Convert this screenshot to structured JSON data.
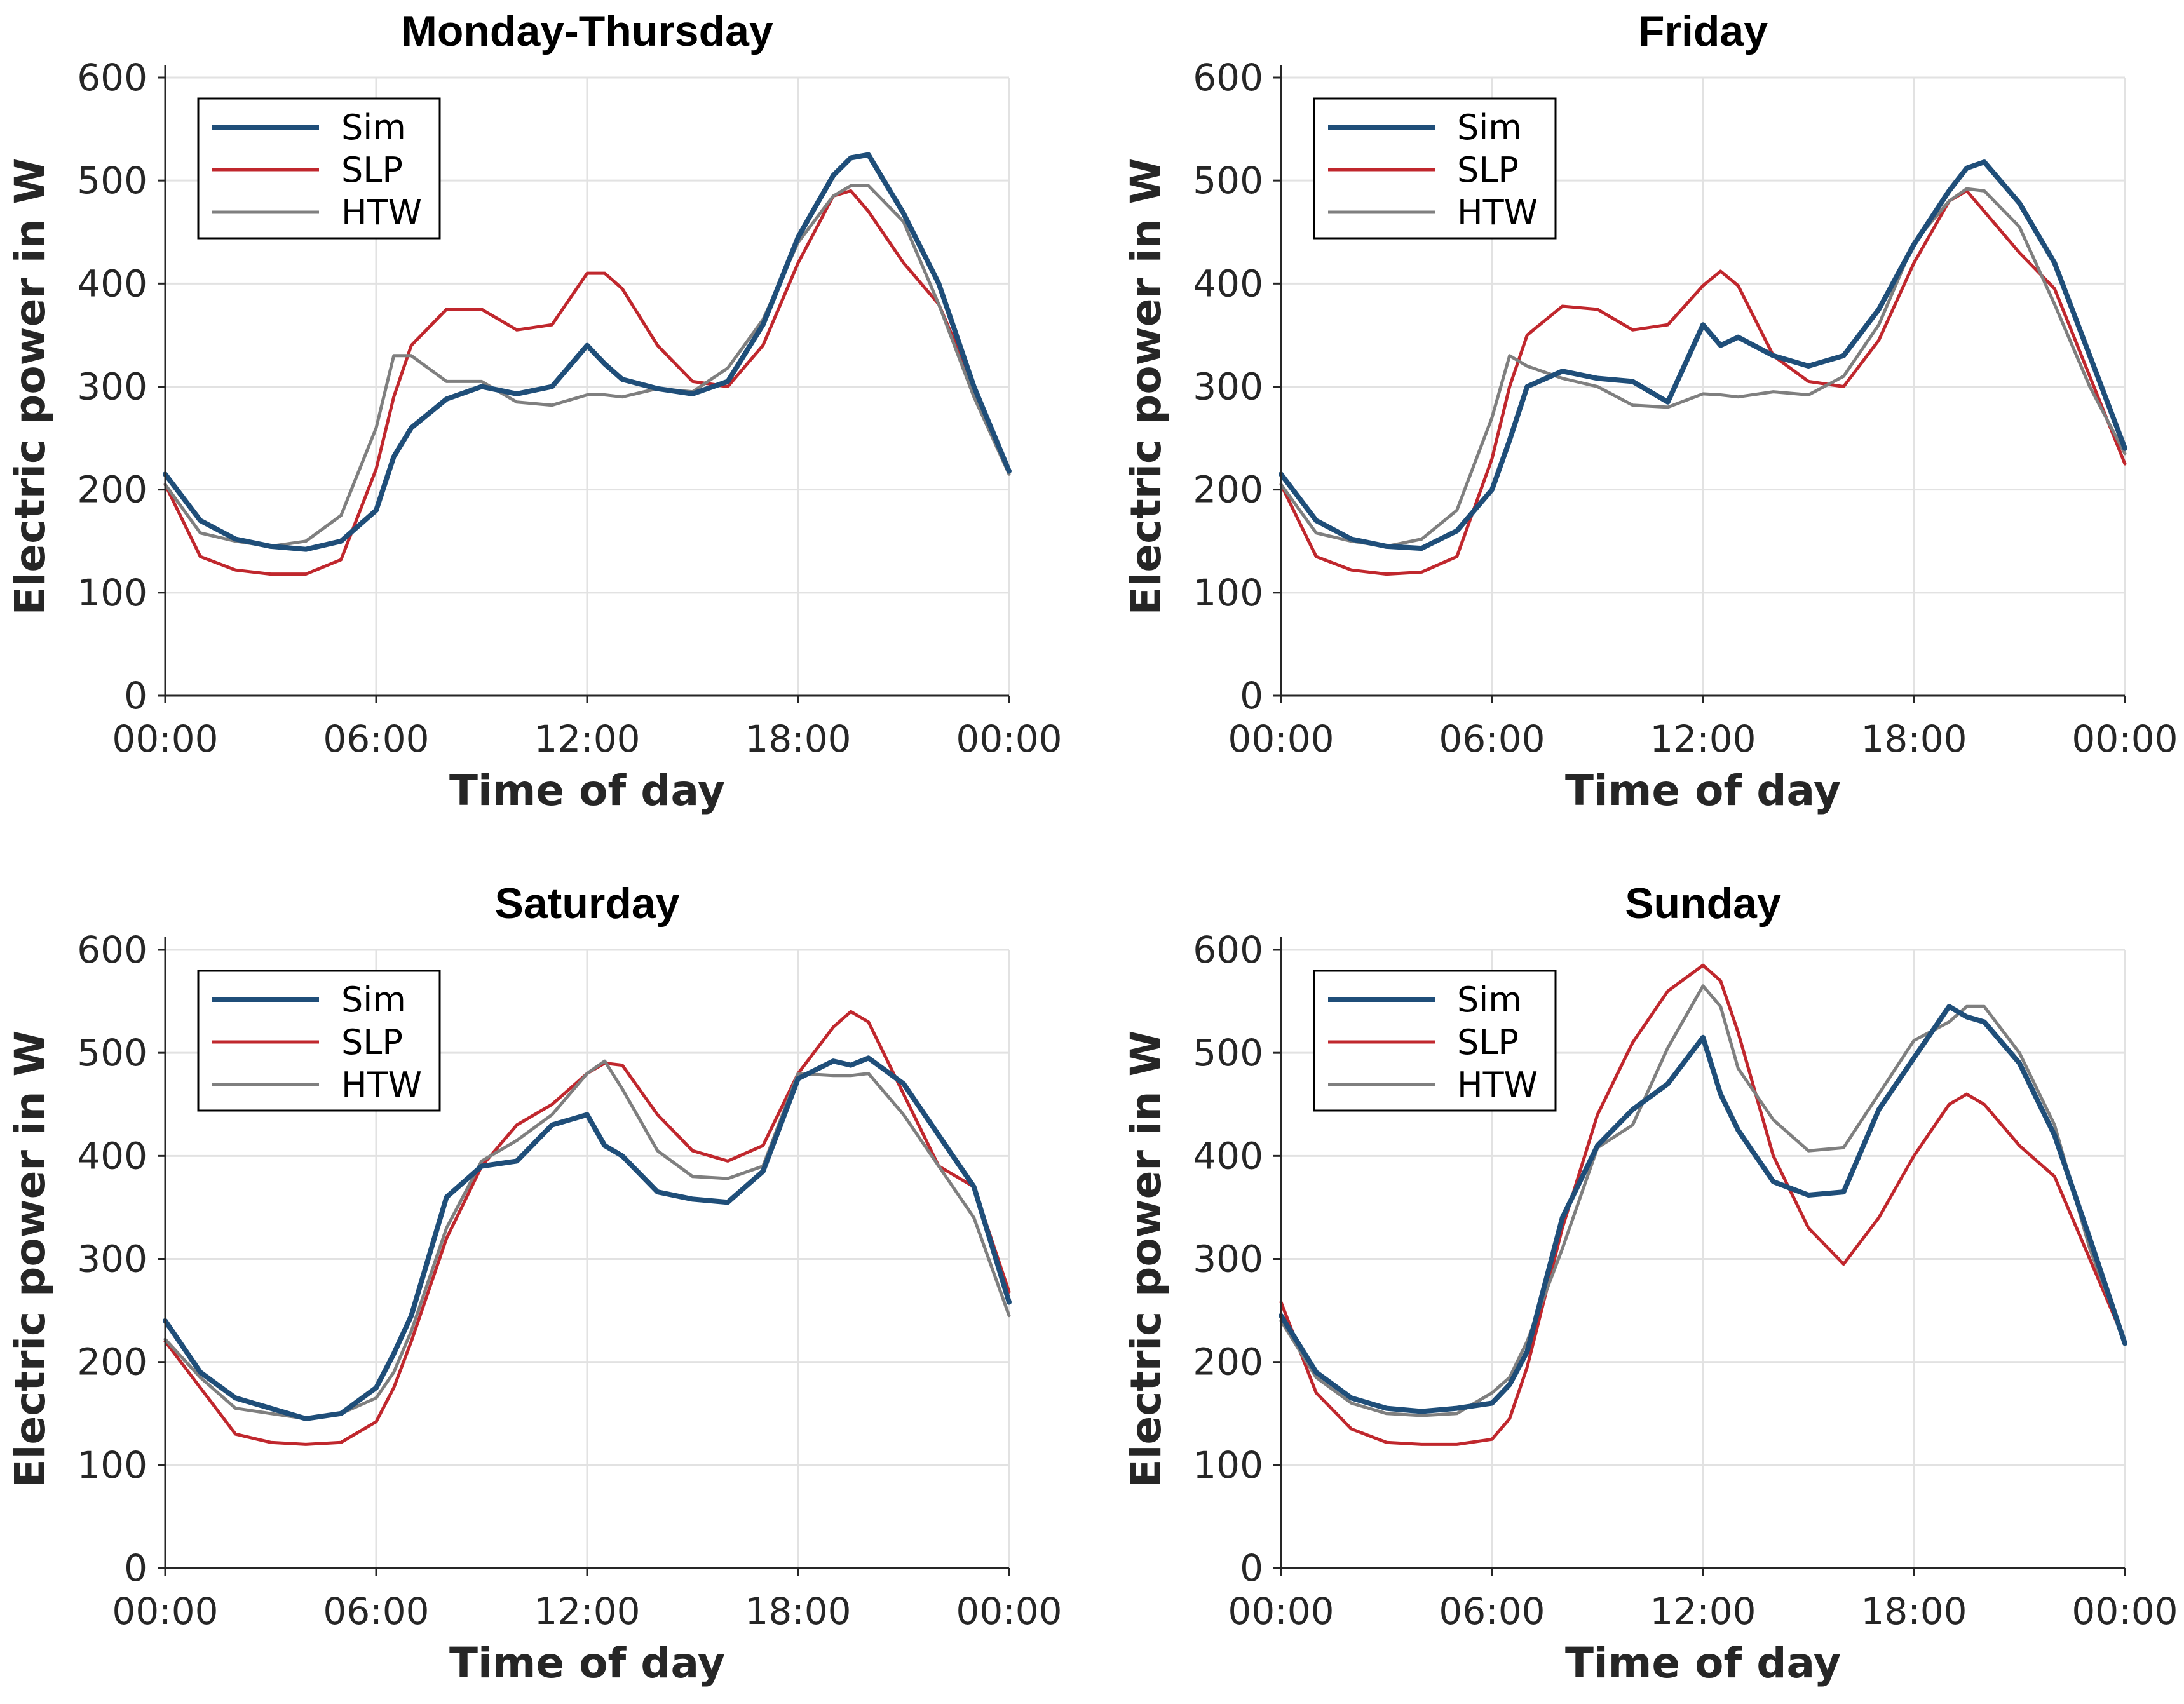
{
  "colors": {
    "Sim": "#1f4e79",
    "SLP": "#c0272d",
    "HTW": "#7f7f7f",
    "grid": "#e2e2e2",
    "axis": "#262626"
  },
  "chart_data": [
    {
      "type": "line",
      "title": "Monday-Thursday",
      "xlabel": "Time of day",
      "ylabel": "Electric power in W",
      "xlim": [
        0,
        24
      ],
      "ylim": [
        0,
        600
      ],
      "grid": true,
      "legend": "top-left",
      "xticks": [
        0,
        6,
        12,
        18,
        24
      ],
      "xtick_labels": [
        "00:00",
        "06:00",
        "12:00",
        "18:00",
        "00:00"
      ],
      "yticks": [
        0,
        100,
        200,
        300,
        400,
        500,
        600
      ],
      "ytick_labels": [
        "0",
        "100",
        "200",
        "300",
        "400",
        "500",
        "600"
      ],
      "x": [
        0,
        1,
        2,
        3,
        4,
        5,
        6,
        6.5,
        7,
        8,
        9,
        10,
        11,
        12,
        12.5,
        13,
        14,
        15,
        16,
        17,
        18,
        19,
        19.5,
        20,
        21,
        22,
        23,
        24
      ],
      "series": [
        {
          "name": "Sim",
          "values": [
            215,
            170,
            152,
            145,
            142,
            150,
            180,
            232,
            260,
            288,
            300,
            293,
            300,
            340,
            322,
            307,
            298,
            293,
            305,
            360,
            445,
            505,
            522,
            525,
            468,
            400,
            300,
            218
          ]
        },
        {
          "name": "SLP",
          "values": [
            205,
            135,
            122,
            118,
            118,
            132,
            220,
            290,
            340,
            375,
            375,
            355,
            360,
            410,
            410,
            395,
            340,
            305,
            300,
            340,
            420,
            485,
            490,
            470,
            420,
            380,
            300,
            220
          ]
        },
        {
          "name": "HTW",
          "values": [
            205,
            158,
            150,
            145,
            150,
            175,
            260,
            330,
            330,
            305,
            305,
            285,
            282,
            292,
            292,
            290,
            298,
            295,
            318,
            365,
            440,
            485,
            495,
            495,
            460,
            380,
            290,
            215
          ]
        }
      ]
    },
    {
      "type": "line",
      "title": "Friday",
      "xlabel": "Time of day",
      "ylabel": "Electric power in W",
      "xlim": [
        0,
        24
      ],
      "ylim": [
        0,
        600
      ],
      "grid": true,
      "legend": "top-left",
      "xticks": [
        0,
        6,
        12,
        18,
        24
      ],
      "xtick_labels": [
        "00:00",
        "06:00",
        "12:00",
        "18:00",
        "00:00"
      ],
      "yticks": [
        0,
        100,
        200,
        300,
        400,
        500,
        600
      ],
      "ytick_labels": [
        "0",
        "100",
        "200",
        "300",
        "400",
        "500",
        "600"
      ],
      "x": [
        0,
        1,
        2,
        3,
        4,
        5,
        6,
        6.5,
        7,
        8,
        9,
        10,
        11,
        12,
        12.5,
        13,
        14,
        15,
        16,
        17,
        18,
        19,
        19.5,
        20,
        21,
        22,
        23,
        24
      ],
      "series": [
        {
          "name": "Sim",
          "values": [
            215,
            170,
            152,
            145,
            143,
            160,
            200,
            248,
            300,
            315,
            308,
            305,
            285,
            360,
            340,
            348,
            330,
            320,
            330,
            375,
            438,
            490,
            512,
            518,
            478,
            420,
            330,
            240
          ]
        },
        {
          "name": "SLP",
          "values": [
            205,
            135,
            122,
            118,
            120,
            135,
            230,
            300,
            350,
            378,
            375,
            355,
            360,
            398,
            412,
            398,
            330,
            305,
            300,
            345,
            420,
            480,
            490,
            470,
            430,
            395,
            310,
            225
          ]
        },
        {
          "name": "HTW",
          "values": [
            205,
            158,
            150,
            145,
            152,
            180,
            270,
            330,
            320,
            308,
            300,
            282,
            280,
            293,
            292,
            290,
            295,
            292,
            310,
            360,
            440,
            480,
            492,
            490,
            455,
            380,
            300,
            235
          ]
        }
      ]
    },
    {
      "type": "line",
      "title": "Saturday",
      "xlabel": "Time of day",
      "ylabel": "Electric power in W",
      "xlim": [
        0,
        24
      ],
      "ylim": [
        0,
        600
      ],
      "grid": true,
      "legend": "top-left",
      "xticks": [
        0,
        6,
        12,
        18,
        24
      ],
      "xtick_labels": [
        "00:00",
        "06:00",
        "12:00",
        "18:00",
        "00:00"
      ],
      "yticks": [
        0,
        100,
        200,
        300,
        400,
        500,
        600
      ],
      "ytick_labels": [
        "0",
        "100",
        "200",
        "300",
        "400",
        "500",
        "600"
      ],
      "x": [
        0,
        1,
        2,
        3,
        4,
        5,
        6,
        6.5,
        7,
        8,
        9,
        10,
        11,
        12,
        12.5,
        13,
        14,
        15,
        16,
        17,
        18,
        19,
        19.5,
        20,
        21,
        22,
        23,
        24
      ],
      "series": [
        {
          "name": "Sim",
          "values": [
            240,
            190,
            165,
            155,
            145,
            150,
            175,
            208,
            245,
            360,
            390,
            395,
            430,
            440,
            410,
            400,
            365,
            358,
            355,
            385,
            475,
            492,
            488,
            495,
            470,
            420,
            370,
            258
          ]
        },
        {
          "name": "SLP",
          "values": [
            220,
            175,
            130,
            122,
            120,
            122,
            142,
            175,
            220,
            320,
            390,
            430,
            450,
            480,
            490,
            488,
            440,
            405,
            395,
            410,
            480,
            525,
            540,
            530,
            460,
            390,
            370,
            268
          ]
        },
        {
          "name": "HTW",
          "values": [
            222,
            185,
            155,
            150,
            145,
            150,
            165,
            190,
            230,
            330,
            395,
            415,
            440,
            480,
            492,
            465,
            405,
            380,
            378,
            390,
            480,
            478,
            478,
            480,
            440,
            390,
            340,
            245
          ]
        }
      ]
    },
    {
      "type": "line",
      "title": "Sunday",
      "xlabel": "Time of day",
      "ylabel": "Electric power in W",
      "xlim": [
        0,
        24
      ],
      "ylim": [
        0,
        600
      ],
      "grid": true,
      "legend": "top-left",
      "xticks": [
        0,
        6,
        12,
        18,
        24
      ],
      "xtick_labels": [
        "00:00",
        "06:00",
        "12:00",
        "18:00",
        "00:00"
      ],
      "yticks": [
        0,
        100,
        200,
        300,
        400,
        500,
        600
      ],
      "ytick_labels": [
        "0",
        "100",
        "200",
        "300",
        "400",
        "500",
        "600"
      ],
      "x": [
        0,
        1,
        2,
        3,
        4,
        5,
        6,
        6.5,
        7,
        8,
        9,
        10,
        11,
        12,
        12.5,
        13,
        14,
        15,
        16,
        17,
        18,
        19,
        19.5,
        20,
        21,
        22,
        23,
        24
      ],
      "series": [
        {
          "name": "Sim",
          "values": [
            245,
            190,
            165,
            155,
            152,
            155,
            160,
            178,
            210,
            340,
            410,
            445,
            470,
            515,
            460,
            425,
            375,
            362,
            365,
            445,
            495,
            545,
            535,
            530,
            490,
            420,
            320,
            218
          ]
        },
        {
          "name": "SLP",
          "values": [
            258,
            170,
            135,
            122,
            120,
            120,
            125,
            145,
            195,
            330,
            440,
            510,
            560,
            585,
            570,
            520,
            400,
            330,
            295,
            340,
            400,
            450,
            460,
            450,
            410,
            380,
            300,
            220
          ]
        },
        {
          "name": "HTW",
          "values": [
            240,
            185,
            160,
            150,
            148,
            150,
            170,
            185,
            220,
            310,
            408,
            430,
            505,
            565,
            545,
            485,
            435,
            405,
            408,
            460,
            512,
            530,
            545,
            545,
            500,
            430,
            310,
            220
          ]
        }
      ]
    }
  ]
}
